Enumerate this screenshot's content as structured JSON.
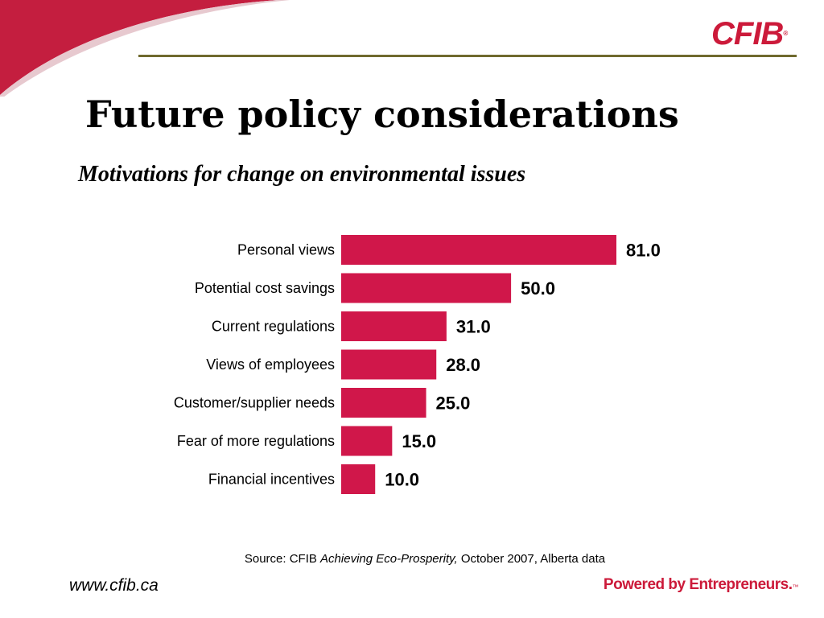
{
  "logo": {
    "text": "CFIB",
    "tm": "®"
  },
  "title": "Future policy considerations",
  "subtitle": "Motivations for change on environmental issues",
  "chart_data": {
    "type": "bar",
    "orientation": "horizontal",
    "categories": [
      "Personal views",
      "Potential cost savings",
      "Current regulations",
      "Views of employees",
      "Customer/supplier needs",
      "Fear of more regulations",
      "Financial incentives"
    ],
    "values": [
      81.0,
      50.0,
      31.0,
      28.0,
      25.0,
      15.0,
      10.0
    ],
    "value_labels": [
      "81.0",
      "50.0",
      "31.0",
      "28.0",
      "25.0",
      "15.0",
      "10.0"
    ],
    "xlim": [
      0,
      100
    ],
    "grid": false,
    "bar_color": "#d0174a"
  },
  "source": {
    "prefix": "Source: CFIB ",
    "title": "Achieving Eco-Prosperity,",
    "suffix": " October 2007, Alberta data"
  },
  "footer": {
    "url": "www.cfib.ca",
    "tagline": "Powered by Entrepreneurs.",
    "tagline_tm": "™"
  },
  "colors": {
    "brand": "#cc1a3a",
    "rule": "#6f6a2e"
  }
}
